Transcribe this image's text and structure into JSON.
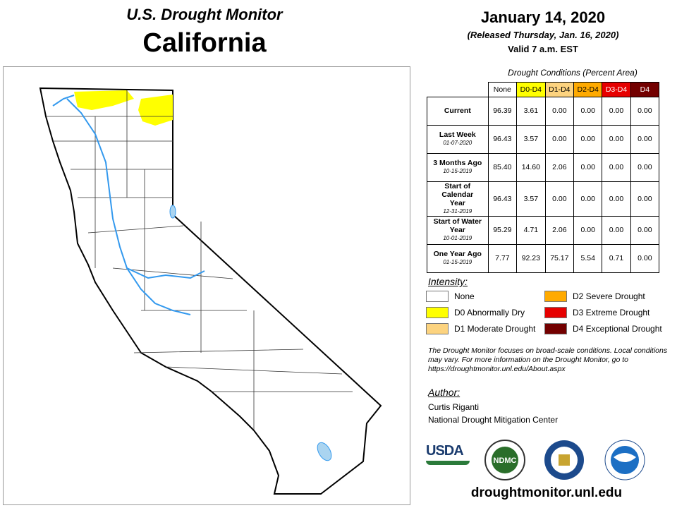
{
  "header": {
    "title": "U.S. Drought Monitor",
    "state": "California"
  },
  "date": {
    "main": "January 14, 2020",
    "released": "(Released Thursday, Jan. 16, 2020)",
    "valid": "Valid 7 a.m. EST"
  },
  "table": {
    "caption": "Drought Conditions (Percent Area)",
    "columns": [
      {
        "label": "None",
        "color": "#ffffff",
        "text": "#000000"
      },
      {
        "label": "D0-D4",
        "color": "#ffff00",
        "text": "#000000"
      },
      {
        "label": "D1-D4",
        "color": "#fcd37f",
        "text": "#000000"
      },
      {
        "label": "D2-D4",
        "color": "#ffaa00",
        "text": "#000000"
      },
      {
        "label": "D3-D4",
        "color": "#e60000",
        "text": "#ffffff"
      },
      {
        "label": "D4",
        "color": "#730000",
        "text": "#ffffff"
      }
    ],
    "rows": [
      {
        "label": "Current",
        "date": null,
        "values": [
          "96.39",
          "3.61",
          "0.00",
          "0.00",
          "0.00",
          "0.00"
        ]
      },
      {
        "label": "Last Week",
        "date": "01-07-2020",
        "values": [
          "96.43",
          "3.57",
          "0.00",
          "0.00",
          "0.00",
          "0.00"
        ]
      },
      {
        "label": "3 Months Ago",
        "date": "10-15-2019",
        "values": [
          "85.40",
          "14.60",
          "2.06",
          "0.00",
          "0.00",
          "0.00"
        ]
      },
      {
        "label": "Start of Calendar Year",
        "date": "12-31-2019",
        "values": [
          "96.43",
          "3.57",
          "0.00",
          "0.00",
          "0.00",
          "0.00"
        ]
      },
      {
        "label": "Start of Water Year",
        "date": "10-01-2019",
        "values": [
          "95.29",
          "4.71",
          "2.06",
          "0.00",
          "0.00",
          "0.00"
        ]
      },
      {
        "label": "One Year Ago",
        "date": "01-15-2019",
        "values": [
          "7.77",
          "92.23",
          "75.17",
          "5.54",
          "0.71",
          "0.00"
        ]
      }
    ]
  },
  "intensity": {
    "title": "Intensity:",
    "items": [
      {
        "label": "None",
        "color": "#ffffff"
      },
      {
        "label": "D0 Abnormally Dry",
        "color": "#ffff00"
      },
      {
        "label": "D1 Moderate Drought",
        "color": "#fcd37f"
      },
      {
        "label": "D2 Severe Drought",
        "color": "#ffaa00"
      },
      {
        "label": "D3 Extreme Drought",
        "color": "#e60000"
      },
      {
        "label": "D4 Exceptional Drought",
        "color": "#730000"
      }
    ]
  },
  "note": "The Drought Monitor focuses on broad-scale conditions. Local conditions may vary. For more information on the Drought Monitor, go to https://droughtmonitor.unl.edu/About.aspx",
  "author": {
    "title": "Author:",
    "name": "Curtis Riganti",
    "org": "National Drought Mitigation Center"
  },
  "logos": {
    "usda": "USDA",
    "ndmc": "NDMC"
  },
  "url": "droughtmonitor.unl.edu"
}
